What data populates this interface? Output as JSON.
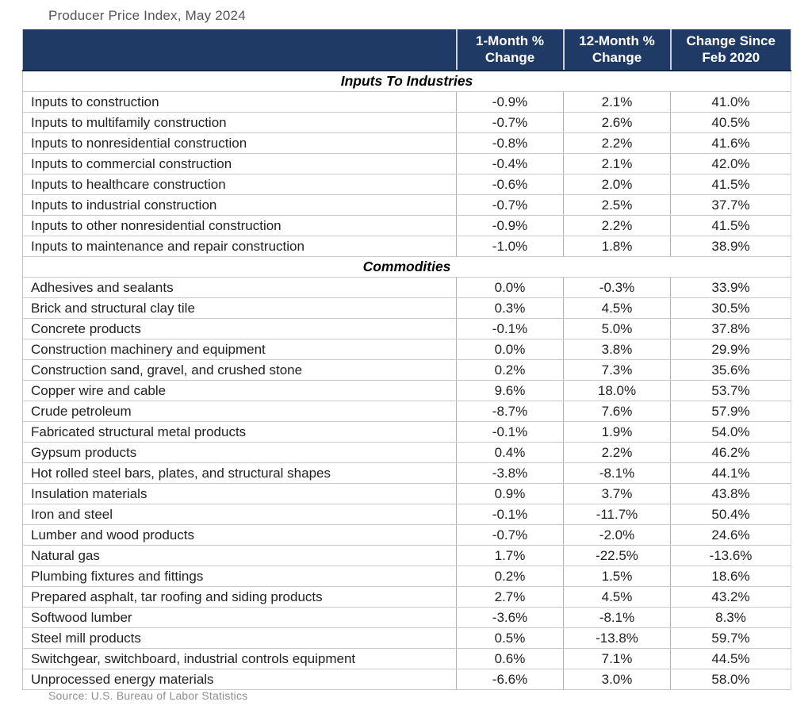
{
  "title": "Producer Price Index, May 2024",
  "source_note": "Source: U.S. Bureau of Labor Statistics",
  "colors": {
    "header_bg": "#1f3a64",
    "header_text": "#ffffff",
    "row_border": "#c9c9c9",
    "column_border": "#b3b3b3",
    "body_text": "#222222",
    "title_text": "#555555",
    "source_text": "#8e8e8e"
  },
  "chart_data": {
    "type": "table",
    "title": "Producer Price Index, May 2024",
    "columns": [
      "",
      "1-Month % Change",
      "12-Month % Change",
      "Change Since Feb 2020"
    ],
    "sections": [
      {
        "label": "Inputs To Industries",
        "rows": [
          {
            "label": "Inputs to construction",
            "values": [
              "-0.9%",
              "2.1%",
              "41.0%"
            ]
          },
          {
            "label": "Inputs to multifamily construction",
            "values": [
              "-0.7%",
              "2.6%",
              "40.5%"
            ]
          },
          {
            "label": "Inputs to nonresidential construction",
            "values": [
              "-0.8%",
              "2.2%",
              "41.6%"
            ]
          },
          {
            "label": "Inputs to commercial construction",
            "values": [
              "-0.4%",
              "2.1%",
              "42.0%"
            ]
          },
          {
            "label": "Inputs to healthcare construction",
            "values": [
              "-0.6%",
              "2.0%",
              "41.5%"
            ]
          },
          {
            "label": "Inputs to industrial construction",
            "values": [
              "-0.7%",
              "2.5%",
              "37.7%"
            ]
          },
          {
            "label": "Inputs to other nonresidential construction",
            "values": [
              "-0.9%",
              "2.2%",
              "41.5%"
            ]
          },
          {
            "label": "Inputs to maintenance and repair construction",
            "values": [
              "-1.0%",
              "1.8%",
              "38.9%"
            ]
          }
        ]
      },
      {
        "label": "Commodities",
        "rows": [
          {
            "label": "Adhesives and sealants",
            "values": [
              "0.0%",
              "-0.3%",
              "33.9%"
            ]
          },
          {
            "label": "Brick and structural clay tile",
            "values": [
              "0.3%",
              "4.5%",
              "30.5%"
            ]
          },
          {
            "label": "Concrete products",
            "values": [
              "-0.1%",
              "5.0%",
              "37.8%"
            ]
          },
          {
            "label": "Construction machinery and equipment",
            "values": [
              "0.0%",
              "3.8%",
              "29.9%"
            ]
          },
          {
            "label": "Construction sand, gravel, and crushed stone",
            "values": [
              "0.2%",
              "7.3%",
              "35.6%"
            ]
          },
          {
            "label": "Copper wire and cable",
            "values": [
              "9.6%",
              "18.0%",
              "53.7%"
            ]
          },
          {
            "label": "Crude petroleum",
            "values": [
              "-8.7%",
              "7.6%",
              "57.9%"
            ]
          },
          {
            "label": "Fabricated structural metal products",
            "values": [
              "-0.1%",
              "1.9%",
              "54.0%"
            ]
          },
          {
            "label": "Gypsum products",
            "values": [
              "0.4%",
              "2.2%",
              "46.2%"
            ]
          },
          {
            "label": "Hot rolled steel bars, plates, and structural shapes",
            "values": [
              "-3.8%",
              "-8.1%",
              "44.1%"
            ]
          },
          {
            "label": "Insulation materials",
            "values": [
              "0.9%",
              "3.7%",
              "43.8%"
            ]
          },
          {
            "label": "Iron and steel",
            "values": [
              "-0.1%",
              "-11.7%",
              "50.4%"
            ]
          },
          {
            "label": "Lumber and wood products",
            "values": [
              "-0.7%",
              "-2.0%",
              "24.6%"
            ]
          },
          {
            "label": "Natural gas",
            "values": [
              "1.7%",
              "-22.5%",
              "-13.6%"
            ]
          },
          {
            "label": "Plumbing fixtures and fittings",
            "values": [
              "0.2%",
              "1.5%",
              "18.6%"
            ]
          },
          {
            "label": "Prepared asphalt, tar roofing and siding products",
            "values": [
              "2.7%",
              "4.5%",
              "43.2%"
            ]
          },
          {
            "label": "Softwood lumber",
            "values": [
              "-3.6%",
              "-8.1%",
              "8.3%"
            ]
          },
          {
            "label": "Steel mill products",
            "values": [
              "0.5%",
              "-13.8%",
              "59.7%"
            ]
          },
          {
            "label": "Switchgear, switchboard, industrial controls equipment",
            "values": [
              "0.6%",
              "7.1%",
              "44.5%"
            ]
          },
          {
            "label": "Unprocessed energy materials",
            "values": [
              "-6.6%",
              "3.0%",
              "58.0%"
            ]
          }
        ]
      }
    ]
  }
}
